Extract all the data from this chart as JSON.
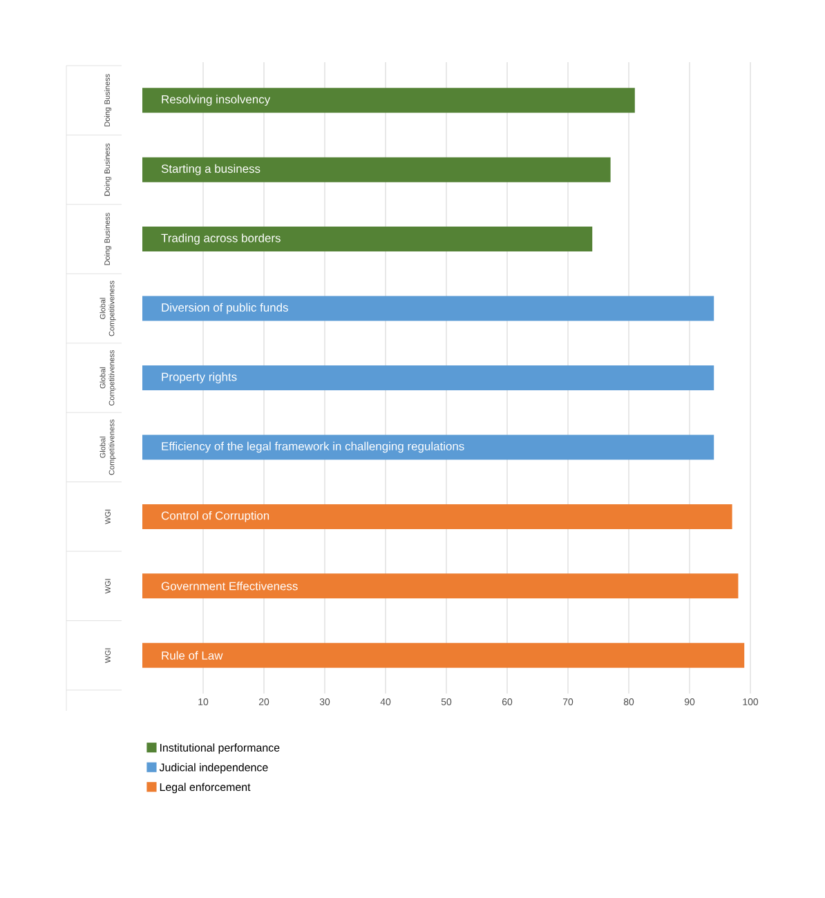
{
  "chart_data": {
    "type": "bar",
    "orientation": "horizontal",
    "categories": [
      "Resolving insolvency",
      "Starting a business",
      "Trading across borders",
      "Diversion of public funds",
      "Property rights",
      "Efficiency of the legal framework in challenging regulations",
      "Control of Corruption",
      "Government Effectiveness",
      "Rule of Law"
    ],
    "series": [
      {
        "name": "Institutional performance",
        "color": "#548235",
        "values": [
          81,
          77,
          74,
          null,
          null,
          null,
          null,
          null,
          null
        ]
      },
      {
        "name": "Judicial independence",
        "color": "#5b9bd5",
        "values": [
          null,
          null,
          null,
          94,
          94,
          94,
          null,
          null,
          null
        ]
      },
      {
        "name": "Legal enforcement",
        "color": "#ed7d31",
        "values": [
          null,
          null,
          null,
          null,
          null,
          null,
          97,
          98,
          99
        ]
      }
    ],
    "xlim": [
      0,
      100
    ],
    "xticks": [
      10,
      20,
      30,
      40,
      50,
      60,
      70,
      80,
      90,
      100
    ],
    "grid": "x",
    "legend": "bottom left",
    "annotations": [
      "Doing Business",
      "Doing Business",
      "Doing Business",
      "Global Competitiveness",
      "Global Competitiveness",
      "Global Competitiveness",
      "WGI",
      "WGI",
      "WGI"
    ]
  }
}
